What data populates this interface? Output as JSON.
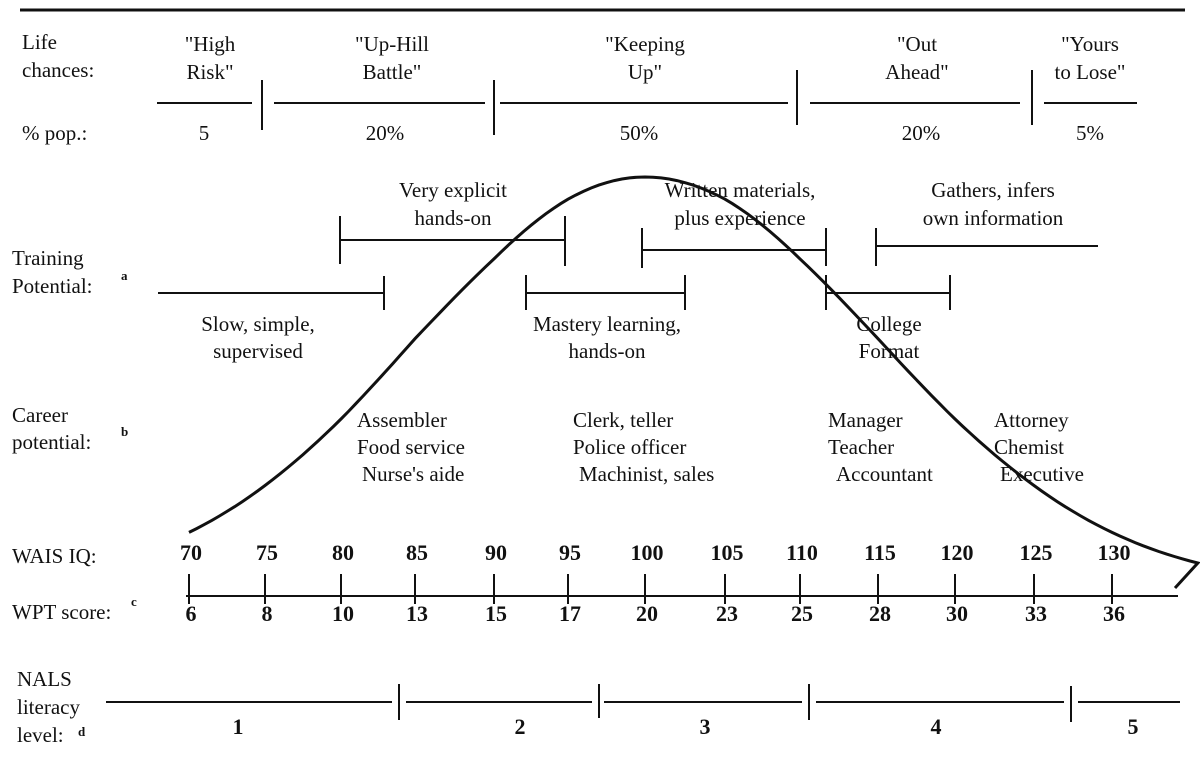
{
  "row_labels": {
    "life_chances": [
      "Life",
      "chances:"
    ],
    "pct_pop": "% pop.:",
    "training": [
      "Training",
      "Potential:"
    ],
    "training_note": "a",
    "career": [
      "Career",
      "potential:"
    ],
    "career_note": "b",
    "wais": "WAIS IQ:",
    "wpt": "WPT score:",
    "wpt_note": "c",
    "nals": [
      "NALS",
      "literacy",
      "level:"
    ],
    "nals_note": "d"
  },
  "life_chances": [
    {
      "name": [
        "\"High",
        "Risk\""
      ],
      "pct": "5%"
    },
    {
      "name": [
        "\"Up-Hill",
        "Battle\""
      ],
      "pct": "20%"
    },
    {
      "name": [
        "\"Keeping",
        "Up\""
      ],
      "pct": "50%"
    },
    {
      "name": [
        "\"Out",
        "Ahead\""
      ],
      "pct": "20%"
    },
    {
      "name": [
        "\"Yours",
        "to Lose\""
      ],
      "pct": "5%"
    }
  ],
  "training_upper": [
    [
      "Very explicit",
      "hands-on"
    ],
    [
      "Written materials,",
      "plus experience"
    ],
    [
      "Gathers, infers",
      "own information"
    ]
  ],
  "training_lower": [
    [
      "Slow, simple,",
      "supervised"
    ],
    [
      "Mastery learning,",
      "hands-on"
    ],
    [
      "College",
      "Format"
    ]
  ],
  "careers": [
    [
      "Assembler",
      "Food service",
      "Nurse's aide"
    ],
    [
      "Clerk, teller",
      "Police officer",
      "Machinist, sales"
    ],
    [
      "Manager",
      "Teacher",
      "Accountant"
    ],
    [
      "Attorney",
      "Chemist",
      "Executive"
    ]
  ],
  "wais_iq": [
    "70",
    "75",
    "80",
    "85",
    "90",
    "95",
    "100",
    "105",
    "110",
    "115",
    "120",
    "125",
    "130"
  ],
  "wpt_scores": [
    "6",
    "8",
    "10",
    "13",
    "15",
    "17",
    "20",
    "23",
    "25",
    "28",
    "30",
    "33",
    "36"
  ],
  "nals_levels": [
    "1",
    "2",
    "3",
    "4",
    "5"
  ],
  "distribution": {
    "mean_iq": 100,
    "sd_iq": 15
  }
}
